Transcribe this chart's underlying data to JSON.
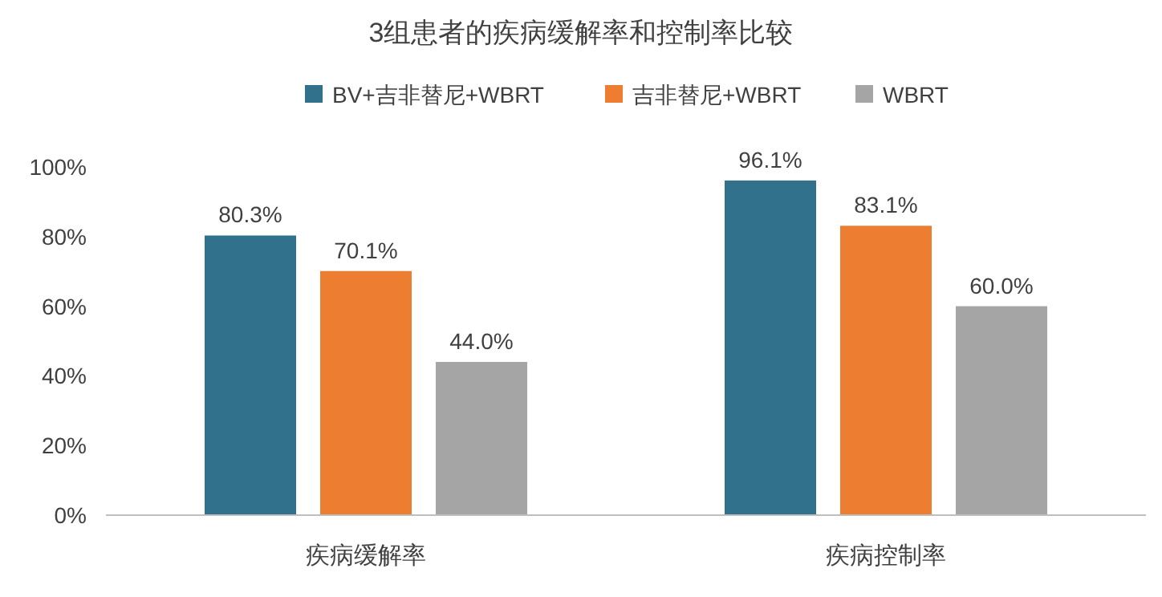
{
  "chart_data": {
    "type": "bar",
    "title": "3组患者的疾病缓解率和控制率比较",
    "categories": [
      "疾病缓解率",
      "疾病控制率"
    ],
    "series": [
      {
        "name": "BV+吉非替尼+WBRT",
        "color": "#31718c",
        "values": [
          80.3,
          96.1
        ],
        "value_labels": [
          "80.3%",
          "96.1%"
        ]
      },
      {
        "name": "吉非替尼+WBRT",
        "color": "#ed7d31",
        "values": [
          70.1,
          83.1
        ],
        "value_labels": [
          "70.1%",
          "83.1%"
        ]
      },
      {
        "name": "WBRT",
        "color": "#a5a5a5",
        "values": [
          44.0,
          60.0
        ],
        "value_labels": [
          "44.0%",
          "60.0%"
        ]
      }
    ],
    "ylim": [
      0,
      100
    ],
    "yticks": [
      {
        "value": 0,
        "label": "0%"
      },
      {
        "value": 20,
        "label": "20%"
      },
      {
        "value": 40,
        "label": "40%"
      },
      {
        "value": 60,
        "label": "60%"
      },
      {
        "value": 80,
        "label": "80%"
      },
      {
        "value": 100,
        "label": "100%"
      }
    ],
    "legend": "top",
    "grid": false
  }
}
